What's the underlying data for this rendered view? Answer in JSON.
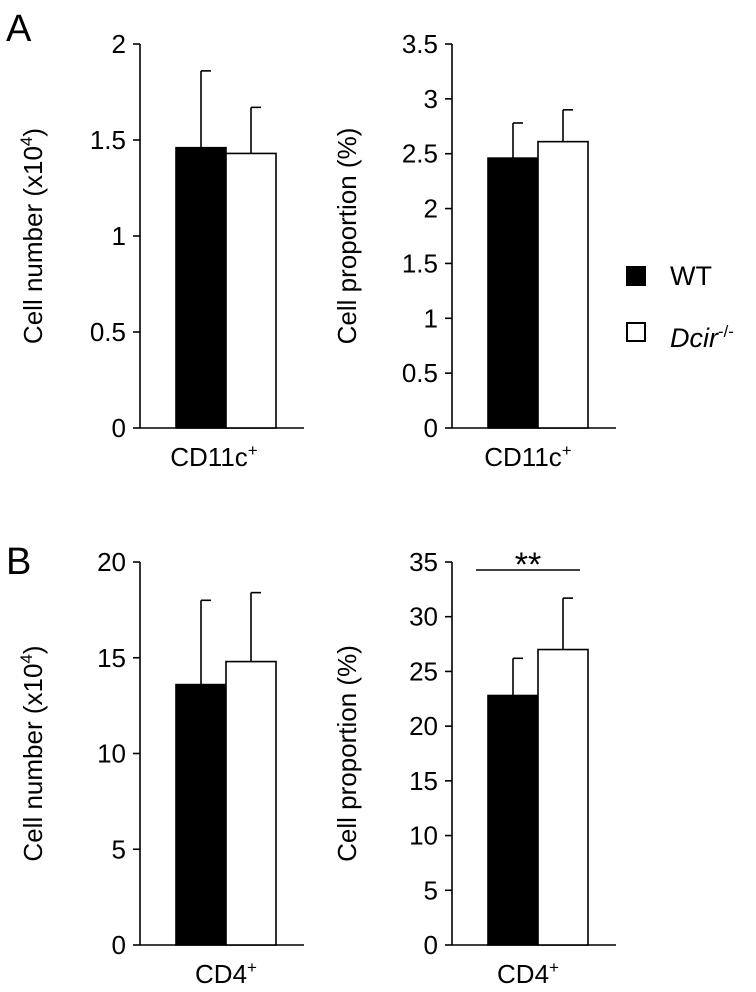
{
  "panels": {
    "A": {
      "label": "A"
    },
    "B": {
      "label": "B"
    }
  },
  "legend": {
    "items": [
      {
        "label": "WT",
        "fill": "#000000"
      },
      {
        "label_base": "Dcir",
        "label_sup": "-/-",
        "fill": "#ffffff"
      }
    ]
  },
  "colors": {
    "wt": "#000000",
    "dcir": "#ffffff",
    "stroke": "#000000"
  },
  "chart_data": [
    {
      "panel": "A",
      "type": "bar",
      "categories": [
        "CD11c+"
      ],
      "category_label_base": "CD11c",
      "category_label_sup": "+",
      "ylabel_base": "Cell number (x10",
      "ylabel_sup": "4",
      "ylabel_tail": ")",
      "ylim": [
        0,
        2
      ],
      "yticks": [
        0,
        0.5,
        1,
        1.5,
        2
      ],
      "series": [
        {
          "group": "WT",
          "values": [
            1.46
          ],
          "error": [
            0.4
          ]
        },
        {
          "group": "Dcir-/-",
          "values": [
            1.43
          ],
          "error": [
            0.24
          ]
        }
      ]
    },
    {
      "panel": "A",
      "type": "bar",
      "categories": [
        "CD11c+"
      ],
      "category_label_base": "CD11c",
      "category_label_sup": "+",
      "ylabel_base": "Cell proportion (%)",
      "ylim": [
        0,
        3.5
      ],
      "yticks": [
        0,
        0.5,
        1,
        1.5,
        2,
        2.5,
        3,
        3.5
      ],
      "series": [
        {
          "group": "WT",
          "values": [
            2.46
          ],
          "error": [
            0.32
          ]
        },
        {
          "group": "Dcir-/-",
          "values": [
            2.61
          ],
          "error": [
            0.29
          ]
        }
      ]
    },
    {
      "panel": "B",
      "type": "bar",
      "categories": [
        "CD4+"
      ],
      "category_label_base": "CD4",
      "category_label_sup": "+",
      "ylabel_base": "Cell number (x10",
      "ylabel_sup": "4",
      "ylabel_tail": ")",
      "ylim": [
        0,
        20
      ],
      "yticks": [
        0,
        5,
        10,
        15,
        20
      ],
      "series": [
        {
          "group": "WT",
          "values": [
            13.6
          ],
          "error": [
            4.4
          ]
        },
        {
          "group": "Dcir-/-",
          "values": [
            14.8
          ],
          "error": [
            3.6
          ]
        }
      ]
    },
    {
      "panel": "B",
      "type": "bar",
      "categories": [
        "CD4+"
      ],
      "category_label_base": "CD4",
      "category_label_sup": "+",
      "ylabel_base": "Cell proportion (%)",
      "ylim": [
        0,
        35
      ],
      "yticks": [
        0,
        5,
        10,
        15,
        20,
        25,
        30,
        35
      ],
      "series": [
        {
          "group": "WT",
          "values": [
            22.8
          ],
          "error": [
            3.4
          ]
        },
        {
          "group": "Dcir-/-",
          "values": [
            27.0
          ],
          "error": [
            4.7
          ]
        }
      ],
      "annotation": {
        "text": "**"
      }
    }
  ]
}
